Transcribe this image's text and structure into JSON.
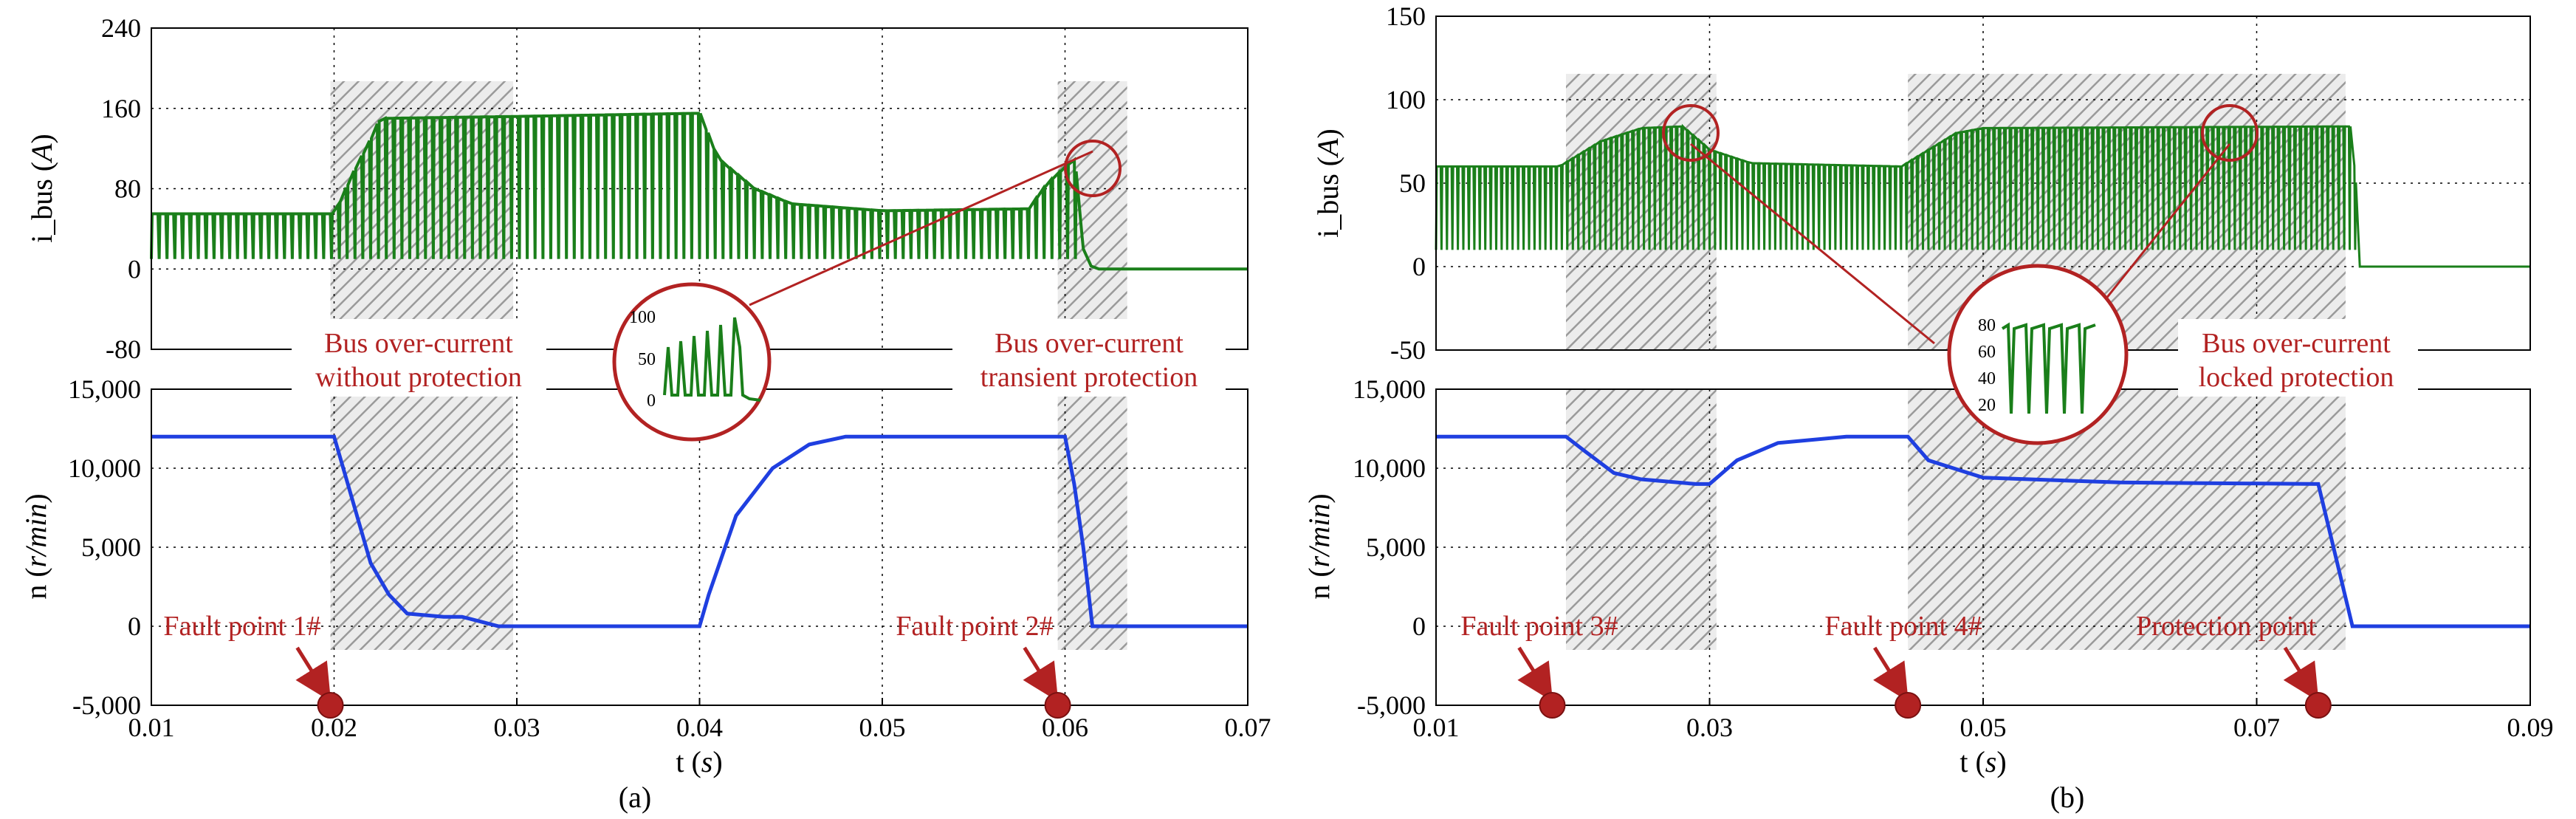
{
  "colors": {
    "current": "#1a7f1a",
    "speed": "#1f3fe0",
    "annotation": "#b22222",
    "hatch": "#9a9a9a"
  },
  "chart_data": [
    {
      "panel": "(a)",
      "type": "line",
      "top": {
        "ylabel_main": "i_bus (",
        "ylabel_unit": "A",
        "ylabel_close": ")",
        "ylim": [
          -80,
          240
        ],
        "yticks": [
          -80,
          0,
          80,
          160,
          240
        ],
        "ytick_labels": [
          "-80",
          "0",
          "80",
          "160",
          "240"
        ],
        "series": {
          "color": "#1a7f1a",
          "description_points": [
            [
              0.01,
              55
            ],
            [
              0.02,
              55
            ],
            [
              0.021,
              95
            ],
            [
              0.022,
              130
            ],
            [
              0.0225,
              150
            ],
            [
              0.03,
              152
            ],
            [
              0.0395,
              155
            ],
            [
              0.04,
              155
            ],
            [
              0.041,
              110
            ],
            [
              0.043,
              80
            ],
            [
              0.045,
              65
            ],
            [
              0.05,
              58
            ],
            [
              0.058,
              60
            ],
            [
              0.059,
              85
            ],
            [
              0.0605,
              110
            ],
            [
              0.061,
              20
            ],
            [
              0.0615,
              0
            ],
            [
              0.07,
              0
            ]
          ],
          "ripple_low": 10
        },
        "zoom_inset": {
          "yticks": [
            "100",
            "50",
            "0"
          ]
        }
      },
      "bottom": {
        "ylabel_main": "n (",
        "ylabel_unit": "r/min",
        "ylabel_close": ")",
        "ylim": [
          -5000,
          15000
        ],
        "yticks": [
          -5000,
          0,
          5000,
          10000,
          15000
        ],
        "ytick_labels": [
          "-5,000",
          "0",
          "5,000",
          "10,000",
          "15,000"
        ],
        "series": {
          "color": "#1f3fe0",
          "points": [
            [
              0.01,
              12000
            ],
            [
              0.02,
              12000
            ],
            [
              0.021,
              8000
            ],
            [
              0.022,
              4000
            ],
            [
              0.023,
              2000
            ],
            [
              0.024,
              800
            ],
            [
              0.026,
              600
            ],
            [
              0.027,
              600
            ],
            [
              0.028,
              300
            ],
            [
              0.029,
              0
            ],
            [
              0.04,
              0
            ],
            [
              0.0405,
              2000
            ],
            [
              0.042,
              7000
            ],
            [
              0.044,
              10000
            ],
            [
              0.046,
              11500
            ],
            [
              0.048,
              12000
            ],
            [
              0.06,
              12000
            ],
            [
              0.0605,
              9000
            ],
            [
              0.061,
              5000
            ],
            [
              0.0615,
              0
            ],
            [
              0.07,
              0
            ]
          ]
        }
      },
      "xlim": [
        0.01,
        0.07
      ],
      "xticks": [
        0.01,
        0.02,
        0.03,
        0.04,
        0.05,
        0.06,
        0.07
      ],
      "xtick_labels": [
        "0.01",
        "0.02",
        "0.03",
        "0.04",
        "0.05",
        "0.06",
        "0.07"
      ],
      "xlabel_main": "t (",
      "xlabel_unit": "s",
      "xlabel_close": ")",
      "shaded_intervals": [
        [
          0.0198,
          0.0298
        ],
        [
          0.0596,
          0.0634
        ]
      ],
      "annotations": {
        "bus_oc_no_prot_line1": "Bus over-current",
        "bus_oc_no_prot_line2": "without protection",
        "bus_oc_trans_line1": "Bus over-current",
        "bus_oc_trans_line2": "transient protection",
        "fault1": "Fault point 1#",
        "fault2": "Fault point 2#"
      },
      "fault_points_t": [
        0.0198,
        0.0596
      ],
      "subcaption": "(a)"
    },
    {
      "panel": "(b)",
      "type": "line",
      "top": {
        "ylabel_main": "i_bus (",
        "ylabel_unit": "A",
        "ylabel_close": ")",
        "ylim": [
          -50,
          150
        ],
        "yticks": [
          -50,
          0,
          50,
          100,
          150
        ],
        "ytick_labels": [
          "-50",
          "0",
          "50",
          "100",
          "150"
        ],
        "series": {
          "color": "#1a7f1a",
          "description_points": [
            [
              0.01,
              60
            ],
            [
              0.019,
              60
            ],
            [
              0.022,
              75
            ],
            [
              0.025,
              83
            ],
            [
              0.028,
              84
            ],
            [
              0.03,
              70
            ],
            [
              0.033,
              62
            ],
            [
              0.044,
              60
            ],
            [
              0.045,
              65
            ],
            [
              0.048,
              80
            ],
            [
              0.05,
              83
            ],
            [
              0.077,
              84
            ],
            [
              0.0775,
              0
            ],
            [
              0.09,
              0
            ]
          ],
          "ripple_low": 10
        },
        "zoom_inset": {
          "yticks": [
            "80",
            "60",
            "40",
            "20"
          ]
        }
      },
      "bottom": {
        "ylabel_main": "n (",
        "ylabel_unit": "r/min",
        "ylabel_close": ")",
        "ylim": [
          -5000,
          15000
        ],
        "yticks": [
          -5000,
          0,
          5000,
          10000,
          15000
        ],
        "ytick_labels": [
          "-5,000",
          "0",
          "5,000",
          "10,000",
          "15,000"
        ],
        "series": {
          "color": "#1f3fe0",
          "points": [
            [
              0.01,
              12000
            ],
            [
              0.0195,
              12000
            ],
            [
              0.021,
              11000
            ],
            [
              0.023,
              9700
            ],
            [
              0.025,
              9300
            ],
            [
              0.029,
              9000
            ],
            [
              0.03,
              9000
            ],
            [
              0.032,
              10500
            ],
            [
              0.035,
              11600
            ],
            [
              0.04,
              12000
            ],
            [
              0.0445,
              12000
            ],
            [
              0.046,
              10500
            ],
            [
              0.05,
              9400
            ],
            [
              0.06,
              9100
            ],
            [
              0.0745,
              9000
            ],
            [
              0.077,
              0
            ],
            [
              0.09,
              0
            ]
          ]
        }
      },
      "xlim": [
        0.01,
        0.09
      ],
      "xticks": [
        0.01,
        0.03,
        0.05,
        0.07,
        0.09
      ],
      "xtick_labels": [
        "0.01",
        "0.03",
        "0.05",
        "0.07",
        "0.09"
      ],
      "xlabel_main": "t (",
      "xlabel_unit": "s",
      "xlabel_close": ")",
      "shaded_intervals": [
        [
          0.0195,
          0.0305
        ],
        [
          0.0445,
          0.0765
        ]
      ],
      "annotations": {
        "bus_oc_locked_line1": "Bus over-current",
        "bus_oc_locked_line2": "locked protection",
        "fault3": "Fault point 3#",
        "fault4": "Fault point 4#",
        "protection": "Protection point"
      },
      "fault_points_t": [
        0.0185,
        0.0445,
        0.0745
      ],
      "subcaption": "(b)"
    }
  ]
}
